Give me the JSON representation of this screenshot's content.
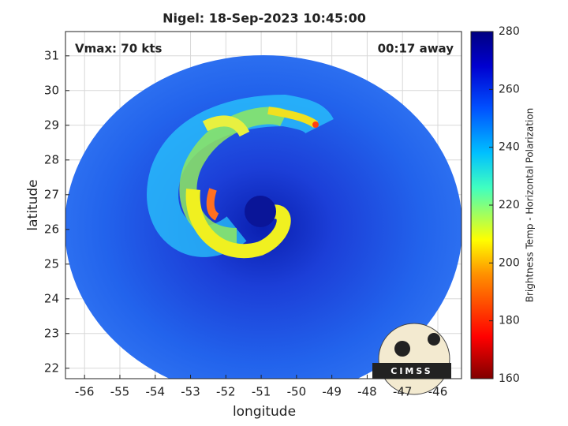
{
  "chart_data": {
    "type": "map",
    "title": "Nigel: 18-Sep-2023 10:45:00",
    "xlabel": "longitude",
    "ylabel": "latitude",
    "xlim": [
      -56.54,
      -45.33
    ],
    "ylim": [
      21.7,
      31.7
    ],
    "xticks": [
      -56,
      -55,
      -54,
      -53,
      -52,
      -51,
      -50,
      -49,
      -48,
      -47,
      -46
    ],
    "yticks": [
      22,
      23,
      24,
      25,
      26,
      27,
      28,
      29,
      30,
      31
    ],
    "grid": true,
    "annotations": [
      "Vmax: 70 kts",
      "00:17 away"
    ],
    "logo": "CIMSS",
    "colorbar": {
      "label": "Brightness Temp - Horizontal Polarization",
      "lim": [
        160,
        280
      ],
      "ticks": [
        160,
        180,
        200,
        220,
        240,
        260,
        280
      ]
    }
  }
}
